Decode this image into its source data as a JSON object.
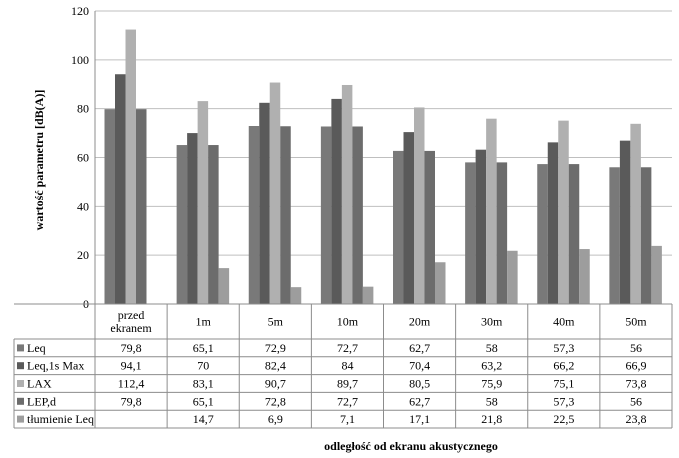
{
  "chart_data": {
    "type": "bar",
    "title": "",
    "ylabel": "wartość parametru [dB(A)]",
    "xlabel": "odległość od ekranu akustycznego",
    "ylim": [
      0,
      120
    ],
    "yticks": [
      0,
      20,
      40,
      60,
      80,
      100,
      120
    ],
    "grid": true,
    "legend": "data-table",
    "categories": [
      "przed\nekranem",
      "1m",
      "5m",
      "10m",
      "20m",
      "30m",
      "40m",
      "50m"
    ],
    "series": [
      {
        "name": "Leq",
        "color": "#797979",
        "values": [
          79.8,
          65.1,
          72.9,
          72.7,
          62.7,
          58,
          57.3,
          56
        ],
        "labels": [
          "79,8",
          "65,1",
          "72,9",
          "72,7",
          "62,7",
          "58",
          "57,3",
          "56"
        ]
      },
      {
        "name": "Leq,1s Max",
        "color": "#5a5a5a",
        "values": [
          94.1,
          70,
          82.4,
          84,
          70.4,
          63.2,
          66.2,
          66.9
        ],
        "labels": [
          "94,1",
          "70",
          "82,4",
          "84",
          "70,4",
          "63,2",
          "66,2",
          "66,9"
        ]
      },
      {
        "name": "LAX",
        "color": "#b0b0b0",
        "values": [
          112.4,
          83.1,
          90.7,
          89.7,
          80.5,
          75.9,
          75.1,
          73.8
        ],
        "labels": [
          "112,4",
          "83,1",
          "90,7",
          "89,7",
          "80,5",
          "75,9",
          "75,1",
          "73,8"
        ]
      },
      {
        "name": "LEP,d",
        "color": "#6c6c6c",
        "values": [
          79.8,
          65.1,
          72.8,
          72.7,
          62.7,
          58,
          57.3,
          56
        ],
        "labels": [
          "79,8",
          "65,1",
          "72,8",
          "72,7",
          "62,7",
          "58",
          "57,3",
          "56"
        ]
      },
      {
        "name": "tłumienie Leq",
        "color": "#9d9d9d",
        "values": [
          null,
          14.7,
          6.9,
          7.1,
          17.1,
          21.8,
          22.5,
          23.8
        ],
        "labels": [
          "",
          "14,7",
          "6,9",
          "7,1",
          "17,1",
          "21,8",
          "22,5",
          "23,8"
        ]
      }
    ]
  }
}
